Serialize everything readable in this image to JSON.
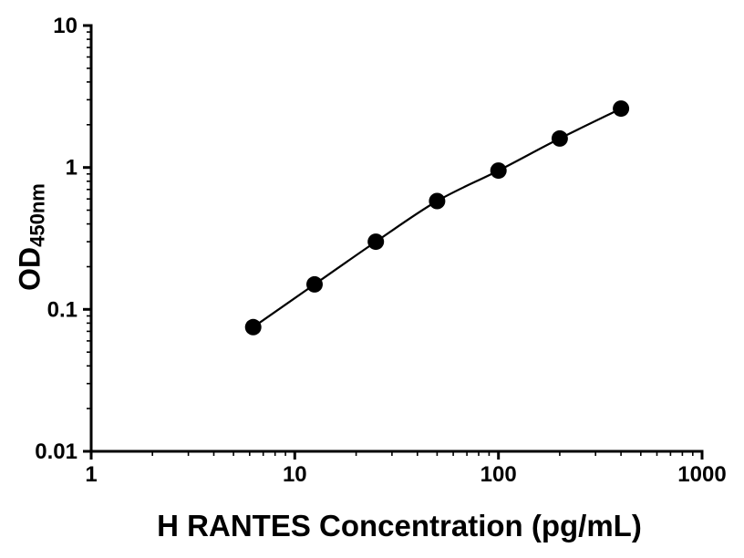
{
  "chart_data": {
    "type": "scatter",
    "title": "",
    "xlabel": "H RANTES Concentration (pg/mL)",
    "ylabel_main": "OD",
    "ylabel_sub": "450nm",
    "x_scale": "log",
    "y_scale": "log",
    "xlim": [
      1,
      1000
    ],
    "ylim": [
      0.01,
      10
    ],
    "x_ticks": [
      1,
      10,
      100,
      1000
    ],
    "x_tick_labels": [
      "1",
      "10",
      "100",
      "1000"
    ],
    "y_ticks": [
      0.01,
      0.1,
      1,
      10
    ],
    "y_tick_labels": [
      "0.01",
      "0.1",
      "1",
      "10"
    ],
    "grid": false,
    "legend": "none",
    "marker_color": "#000000",
    "line_color": "#000000",
    "points": [
      {
        "x": 6.25,
        "y": 0.075
      },
      {
        "x": 12.5,
        "y": 0.15
      },
      {
        "x": 25,
        "y": 0.3
      },
      {
        "x": 50,
        "y": 0.58
      },
      {
        "x": 100,
        "y": 0.95
      },
      {
        "x": 200,
        "y": 1.6
      },
      {
        "x": 400,
        "y": 2.6
      }
    ]
  }
}
